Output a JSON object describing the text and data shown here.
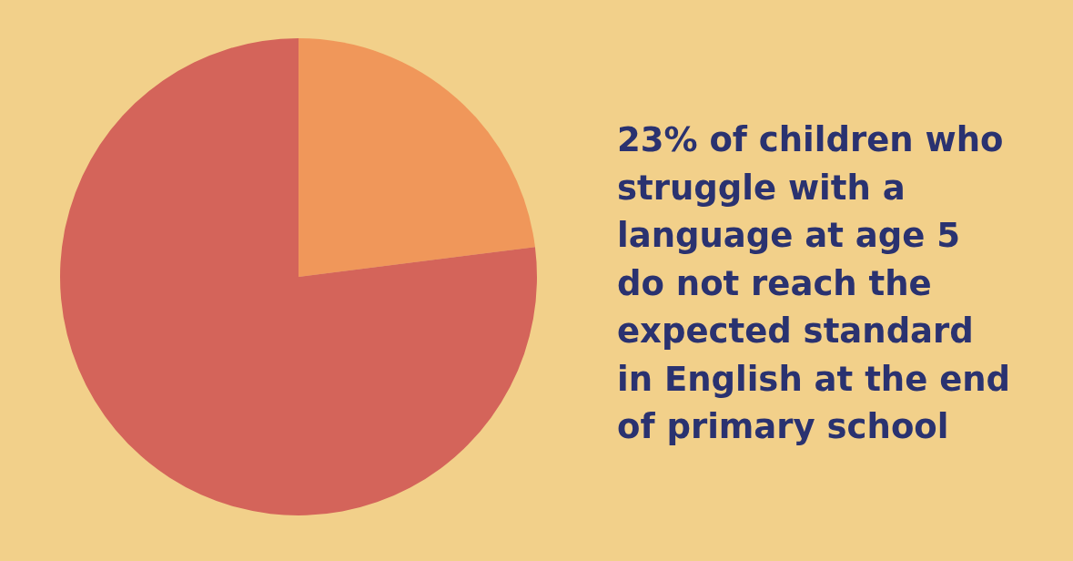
{
  "chart_data": {
    "type": "pie",
    "title": "23% of children who struggle with a language at age 5 do not reach the expected standard in English at the end of primary school",
    "categories": [
      null,
      null
    ],
    "values": [
      23,
      77
    ],
    "colors": [
      "#f0975a",
      "#d4645a"
    ]
  }
}
